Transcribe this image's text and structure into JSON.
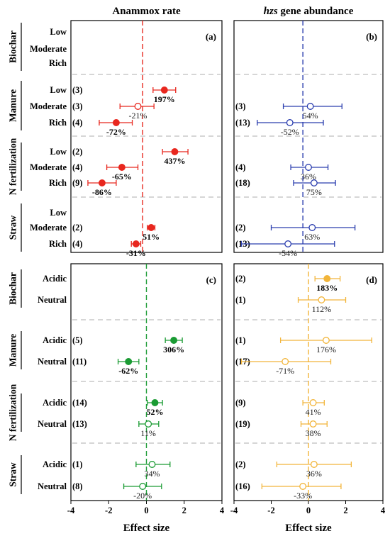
{
  "chart_data": [
    {
      "panel": "(a)",
      "type": "scatter",
      "title": "Anammox rate",
      "title_italic_prefix": "",
      "xlabel": "",
      "xlim": [
        -4,
        4
      ],
      "xticks": [],
      "ref_line": {
        "x": -0.2,
        "color": "#e8271e"
      },
      "color": "#e8271e",
      "groups": [
        {
          "name": "Biochar",
          "rows": [
            {
              "level": "Low"
            },
            {
              "level": "Moderate"
            },
            {
              "level": "Rich"
            }
          ]
        },
        {
          "name": "Manure",
          "rows": [
            {
              "level": "Low",
              "n": "(3)",
              "mean": 0.95,
              "lo": 0.35,
              "hi": 1.55,
              "label": "197%",
              "sig": true
            },
            {
              "level": "Moderate",
              "n": "(3)",
              "mean": -0.45,
              "lo": -1.4,
              "hi": 0.4,
              "label": "-21%",
              "sig": false
            },
            {
              "level": "Rich",
              "n": "(4)",
              "mean": -1.6,
              "lo": -2.5,
              "hi": -0.75,
              "label": "-72%",
              "sig": true
            }
          ]
        },
        {
          "name": "N fertilization",
          "rows": [
            {
              "level": "Low",
              "n": "(2)",
              "mean": 1.5,
              "lo": 0.85,
              "hi": 2.2,
              "label": "437%",
              "sig": true
            },
            {
              "level": "Moderate",
              "n": "(4)",
              "mean": -1.3,
              "lo": -2.1,
              "hi": -0.45,
              "label": "-65%",
              "sig": true
            },
            {
              "level": "Rich",
              "n": "(9)",
              "mean": -2.35,
              "lo": -3.1,
              "hi": -1.6,
              "label": "-86%",
              "sig": true
            }
          ]
        },
        {
          "name": "Straw",
          "rows": [
            {
              "level": "Low"
            },
            {
              "level": "Moderate",
              "n": "(2)",
              "mean": 0.25,
              "lo": 0.05,
              "hi": 0.45,
              "label": "51%",
              "sig": true
            },
            {
              "level": "Rich",
              "n": "(4)",
              "mean": -0.55,
              "lo": -0.8,
              "hi": -0.3,
              "label": "-31%",
              "sig": true
            }
          ]
        }
      ]
    },
    {
      "panel": "(b)",
      "type": "scatter",
      "title": "gene abundance",
      "title_italic_prefix": "hzs",
      "xlabel": "",
      "xlim": [
        -4,
        4
      ],
      "xticks": [],
      "ref_line": {
        "x": -0.3,
        "color": "#2a3dae"
      },
      "color": "#2a3dae",
      "groups": [
        {
          "name": "Biochar",
          "rows": [
            {},
            {},
            {}
          ]
        },
        {
          "name": "Manure",
          "rows": [
            {},
            {
              "n": "(3)",
              "mean": 0.1,
              "lo": -1.35,
              "hi": 1.8,
              "label": "54%",
              "sig": false
            },
            {
              "n": "(13)",
              "mean": -1.0,
              "lo": -2.75,
              "hi": 0.8,
              "label": "-52%",
              "sig": false
            }
          ]
        },
        {
          "name": "N fertilization",
          "rows": [
            {},
            {
              "n": "(4)",
              "mean": 0.0,
              "lo": -0.95,
              "hi": 1.05,
              "label": "36%",
              "sig": false
            },
            {
              "n": "(18)",
              "mean": 0.3,
              "lo": -0.8,
              "hi": 1.45,
              "label": "75%",
              "sig": false
            }
          ]
        },
        {
          "name": "Straw",
          "rows": [
            {},
            {
              "n": "(2)",
              "mean": 0.2,
              "lo": -2.0,
              "hi": 2.5,
              "label": "63%",
              "sig": false
            },
            {
              "n": "(13)",
              "mean": -1.1,
              "lo": -3.6,
              "hi": 1.4,
              "label": "-54%",
              "sig": false
            }
          ]
        }
      ]
    },
    {
      "panel": "(c)",
      "type": "scatter",
      "title": "",
      "xlabel": "Effect size",
      "xlim": [
        -4,
        4
      ],
      "xticks": [
        "-4",
        "-2",
        "0",
        "2",
        "4"
      ],
      "ref_line": {
        "x": 0.0,
        "color": "#1a9b33"
      },
      "color": "#1a9b33",
      "groups": [
        {
          "name": "Biochar",
          "rows": [
            {
              "level": "Acidic"
            },
            {
              "level": "Neutral"
            }
          ]
        },
        {
          "name": "Manure",
          "rows": [
            {
              "level": "Acidic",
              "n": "(5)",
              "mean": 1.45,
              "lo": 1.0,
              "hi": 1.9,
              "label": "306%",
              "sig": true
            },
            {
              "level": "Neutral",
              "n": "(11)",
              "mean": -0.95,
              "lo": -1.5,
              "hi": -0.4,
              "label": "-62%",
              "sig": true
            }
          ]
        },
        {
          "name": "N fertilization",
          "rows": [
            {
              "level": "Acidic",
              "n": "(14)",
              "mean": 0.45,
              "lo": 0.05,
              "hi": 0.85,
              "label": "52%",
              "sig": true
            },
            {
              "level": "Neutral",
              "n": "(13)",
              "mean": 0.1,
              "lo": -0.4,
              "hi": 0.65,
              "label": "11%",
              "sig": false
            }
          ]
        },
        {
          "name": "Straw",
          "rows": [
            {
              "level": "Acidic",
              "n": "(1)",
              "mean": 0.3,
              "lo": -0.55,
              "hi": 1.25,
              "label": "34%",
              "sig": false
            },
            {
              "level": "Neutral",
              "n": "(8)",
              "mean": -0.2,
              "lo": -1.2,
              "hi": 0.8,
              "label": "-20%",
              "sig": false
            }
          ]
        }
      ]
    },
    {
      "panel": "(d)",
      "type": "scatter",
      "title": "",
      "xlabel": "Effect size",
      "xlim": [
        -4,
        4
      ],
      "xticks": [
        "-4",
        "-2",
        "0",
        "2",
        "4"
      ],
      "ref_line": {
        "x": 0.0,
        "color": "#f2b53a"
      },
      "color": "#f2b53a",
      "groups": [
        {
          "name": "Biochar",
          "rows": [
            {
              "n": "(2)",
              "mean": 1.0,
              "lo": 0.35,
              "hi": 1.7,
              "label": "183%",
              "sig": true
            },
            {
              "n": "(1)",
              "mean": 0.7,
              "lo": -0.55,
              "hi": 2.0,
              "label": "112%",
              "sig": false
            }
          ]
        },
        {
          "name": "Manure",
          "rows": [
            {
              "n": "(1)",
              "mean": 0.95,
              "lo": -1.5,
              "hi": 3.4,
              "label": "176%",
              "sig": false
            },
            {
              "n": "(17)",
              "mean": -1.25,
              "lo": -3.6,
              "hi": 1.2,
              "label": "-71%",
              "sig": false
            }
          ]
        },
        {
          "name": "N fertilization",
          "rows": [
            {
              "n": "(9)",
              "mean": 0.25,
              "lo": -0.3,
              "hi": 0.85,
              "label": "41%",
              "sig": false
            },
            {
              "n": "(19)",
              "mean": 0.25,
              "lo": -0.4,
              "hi": 1.0,
              "label": "38%",
              "sig": false
            }
          ]
        },
        {
          "name": "Straw",
          "rows": [
            {
              "n": "(2)",
              "mean": 0.3,
              "lo": -1.7,
              "hi": 2.3,
              "label": "36%",
              "sig": false
            },
            {
              "n": "(16)",
              "mean": -0.3,
              "lo": -2.5,
              "hi": 1.75,
              "label": "-33%",
              "sig": false
            }
          ]
        }
      ]
    }
  ]
}
